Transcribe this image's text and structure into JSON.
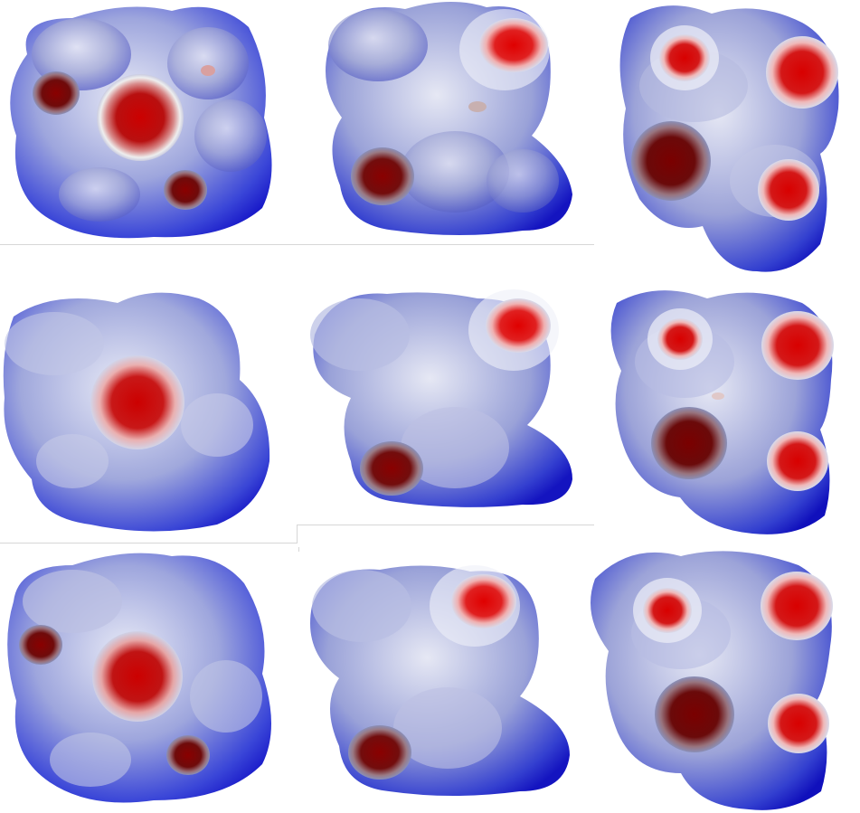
{
  "grid": {
    "rows": 3,
    "columns": 3,
    "color_scale": {
      "high": "#d40000",
      "neutral": "#ffffff",
      "low": "#1010e0"
    }
  }
}
